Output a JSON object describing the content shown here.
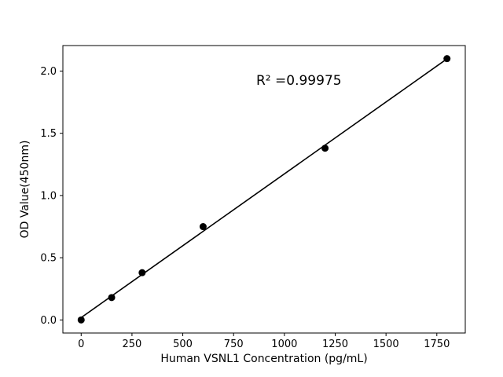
{
  "figure": {
    "background": "#ffffff"
  },
  "chart_data": {
    "type": "scatter",
    "title": "",
    "xlabel": "Human VSNL1 Concentration (pg/mL)",
    "ylabel": "OD Value(450nm)",
    "annotation": "R² =0.99975",
    "x": [
      0,
      150,
      300,
      600,
      1200,
      1800
    ],
    "y": [
      0.0,
      0.18,
      0.38,
      0.75,
      1.38,
      2.1
    ],
    "fit_line": {
      "x": [
        0,
        1800
      ],
      "y": [
        0.019,
        2.098
      ]
    },
    "xlim": [
      -90,
      1890
    ],
    "ylim": [
      -0.105,
      2.205
    ],
    "xticks": {
      "values": [
        0,
        250,
        500,
        750,
        1000,
        1250,
        1500,
        1750
      ],
      "labels": [
        "0",
        "250",
        "500",
        "750",
        "1000",
        "1250",
        "1500",
        "1750"
      ]
    },
    "yticks": {
      "values": [
        0.0,
        0.5,
        1.0,
        1.5,
        2.0
      ],
      "labels": [
        "0.0",
        "0.5",
        "1.0",
        "1.5",
        "2.0"
      ]
    },
    "grid": false,
    "legend_position": "none",
    "colors": {
      "point": "#000000",
      "line": "#000000",
      "frame": "#000000",
      "text": "#000000"
    }
  }
}
